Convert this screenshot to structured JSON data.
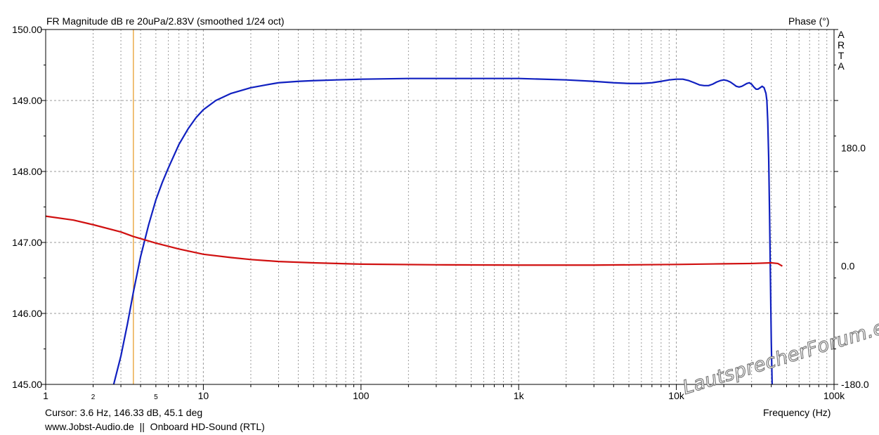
{
  "chart_data": {
    "type": "line",
    "title": "FR Magnitude dB re 20uPa/2.83V (smoothed 1/24 oct)",
    "xlabel": "Frequency (Hz)",
    "ylabel_right": "Phase (°)",
    "x_scale": "log",
    "xlim": [
      1,
      100000
    ],
    "ylim": [
      145.0,
      150.0
    ],
    "y2lim": [
      -180,
      360
    ],
    "grid": true,
    "x_ticks": [
      {
        "value": 1,
        "label": "1"
      },
      {
        "value": 10,
        "label": "10"
      },
      {
        "value": 100,
        "label": "100"
      },
      {
        "value": 1000,
        "label": "1k"
      },
      {
        "value": 10000,
        "label": "10k"
      },
      {
        "value": 100000,
        "label": "100k"
      }
    ],
    "x_minor_labels": [
      {
        "value": 2,
        "label": "2"
      },
      {
        "value": 5,
        "label": "5"
      }
    ],
    "y_ticks": [
      {
        "value": 150.0,
        "label": "150.00"
      },
      {
        "value": 149.0,
        "label": "149.00"
      },
      {
        "value": 148.0,
        "label": "148.00"
      },
      {
        "value": 147.0,
        "label": "147.00"
      },
      {
        "value": 146.0,
        "label": "146.00"
      },
      {
        "value": 145.0,
        "label": "145.00"
      }
    ],
    "y2_ticks": [
      {
        "value": 180,
        "label": "180.0"
      },
      {
        "value": 0,
        "label": "0.0"
      },
      {
        "value": -180,
        "label": "-180.0"
      }
    ],
    "cursor": {
      "x": 3.6,
      "color": "#e8a030"
    },
    "series": [
      {
        "color": "#1020c0",
        "axis": "left",
        "x": [
          2.7,
          3.0,
          3.3,
          3.6,
          4.0,
          4.5,
          5.0,
          5.5,
          6.0,
          7.0,
          8.0,
          9.0,
          10,
          12,
          15,
          20,
          25,
          30,
          40,
          50,
          70,
          100,
          200,
          500,
          1000,
          2000,
          3000,
          4000,
          5000,
          6000,
          7000,
          8000,
          9000,
          10000,
          11000,
          12000,
          13000,
          14000,
          15000,
          16000,
          17000,
          18000,
          19000,
          20000,
          21000,
          22000,
          23000,
          24000,
          25000,
          26000,
          27000,
          28000,
          29000,
          30000,
          31000,
          32000,
          33000,
          34000,
          35000,
          36000,
          37000,
          37500,
          38000,
          38500,
          39000,
          39500,
          40000,
          40500,
          41000
        ],
        "y": [
          145.0,
          145.4,
          145.85,
          146.3,
          146.8,
          147.25,
          147.6,
          147.85,
          148.05,
          148.38,
          148.6,
          148.76,
          148.87,
          149.0,
          149.1,
          149.18,
          149.22,
          149.25,
          149.27,
          149.28,
          149.29,
          149.3,
          149.31,
          149.31,
          149.31,
          149.29,
          149.27,
          149.25,
          149.24,
          149.24,
          149.25,
          149.27,
          149.29,
          149.3,
          149.3,
          149.28,
          149.25,
          149.22,
          149.21,
          149.21,
          149.23,
          149.26,
          149.28,
          149.29,
          149.28,
          149.26,
          149.23,
          149.2,
          149.19,
          149.2,
          149.22,
          149.24,
          149.25,
          149.23,
          149.19,
          149.16,
          149.16,
          149.18,
          149.2,
          149.18,
          149.1,
          149.0,
          148.7,
          148.2,
          147.4,
          146.5,
          145.6,
          145.0,
          144.8
        ]
      },
      {
        "color": "#d01010",
        "axis": "right",
        "x": [
          1,
          1.5,
          2,
          3,
          3.6,
          5,
          7,
          10,
          15,
          20,
          30,
          50,
          100,
          300,
          1000,
          3000,
          10000,
          20000,
          30000,
          40000,
          44000,
          47000
        ],
        "y": [
          76,
          70,
          63,
          52,
          45,
          35,
          26,
          18,
          13,
          10,
          7,
          5,
          3,
          2,
          1.5,
          1.5,
          2.5,
          3.5,
          4,
          5,
          4,
          0
        ]
      }
    ],
    "side_label": [
      "A",
      "R",
      "T",
      "A"
    ],
    "cursor_readout": "Cursor: 3.6 Hz, 146.33 dB, 45.1 deg",
    "footer": "www.Jobst-Audio.de  ||  Onboard HD-Sound (RTL)",
    "watermark": "LautsprecherForum.eu"
  }
}
